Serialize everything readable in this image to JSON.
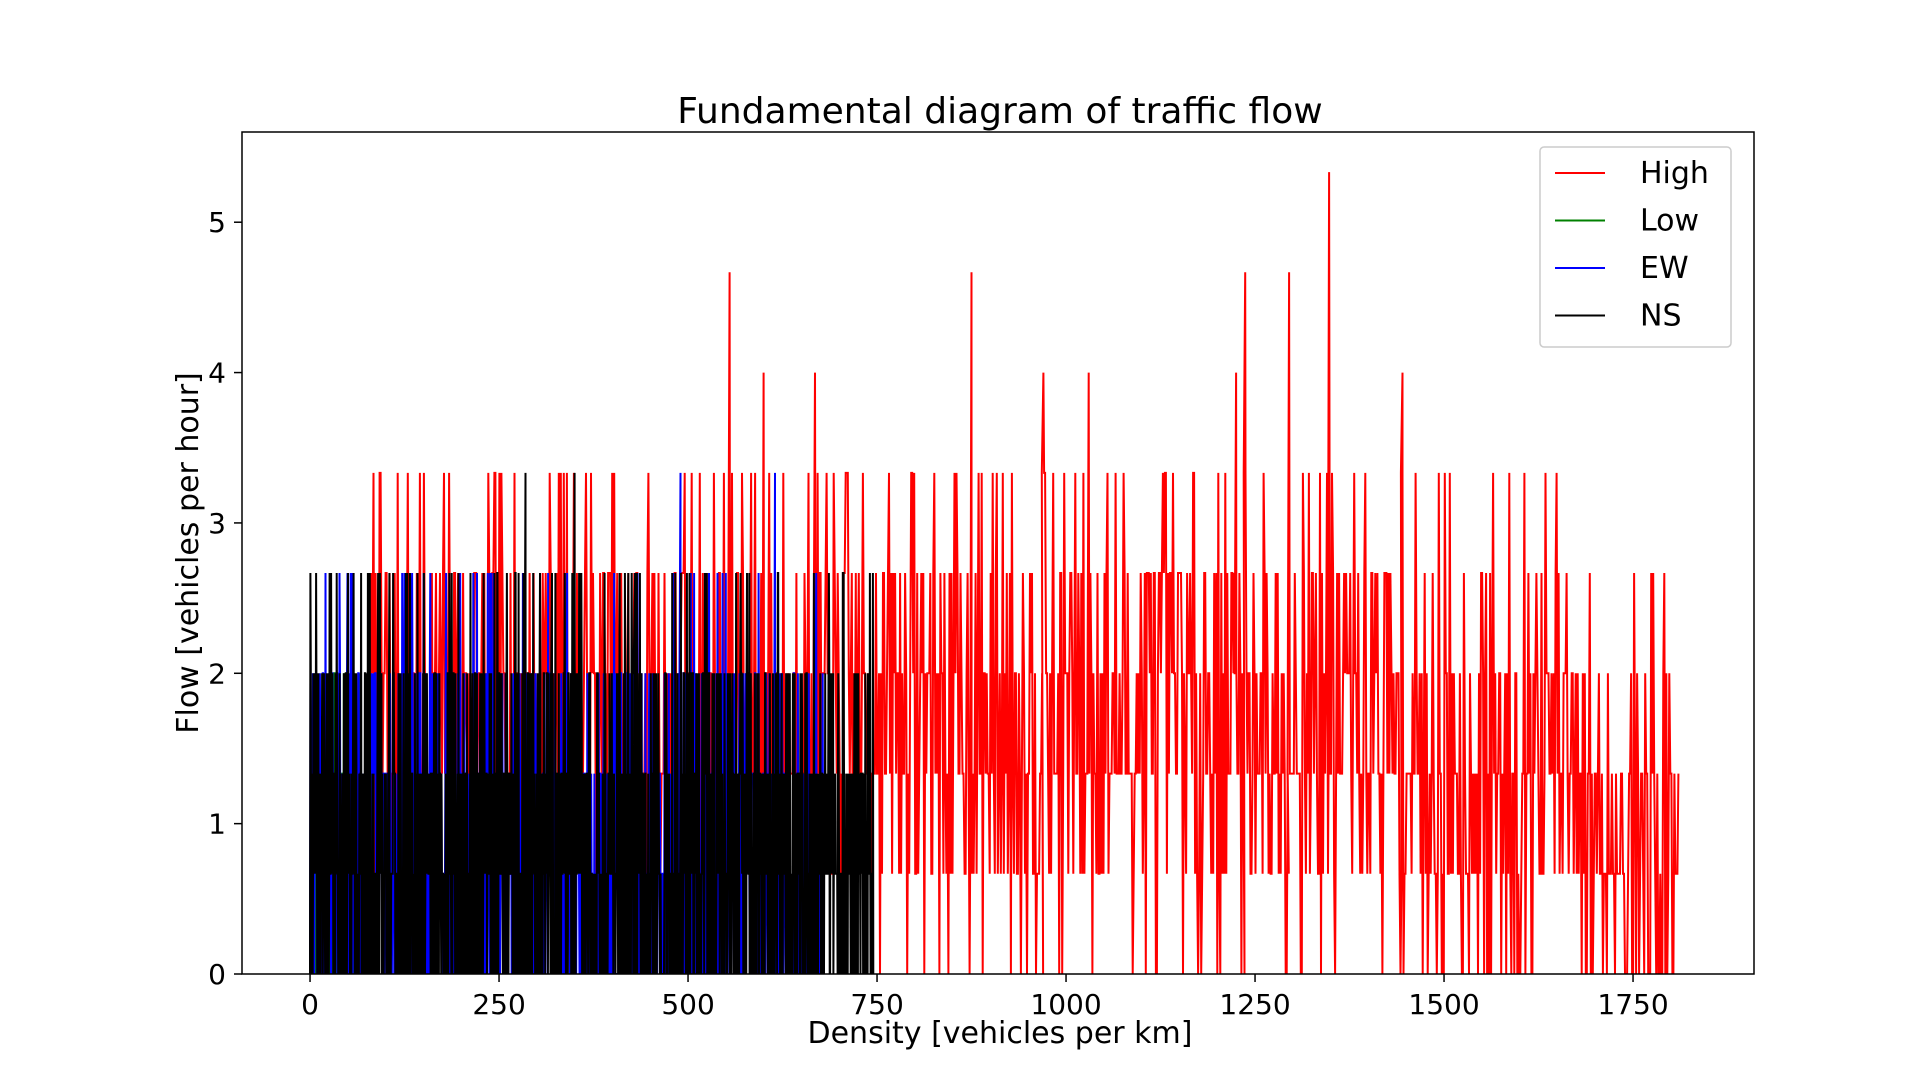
{
  "chart_data": {
    "type": "line",
    "title": "Fundamental diagram of traffic flow",
    "xlabel": "Density [vehicles per km]",
    "ylabel": "Flow [vehicles per hour]",
    "xlim": [
      -90,
      1910
    ],
    "ylim": [
      0,
      5.6
    ],
    "xticks": [
      0,
      250,
      500,
      750,
      1000,
      1250,
      1500,
      1750
    ],
    "xtick_labels": [
      "0",
      "250",
      "500",
      "750",
      "1000",
      "1250",
      "1500",
      "1750"
    ],
    "yticks": [
      0,
      1,
      2,
      3,
      4,
      5
    ],
    "ytick_labels": [
      "0",
      "1",
      "2",
      "3",
      "4",
      "5"
    ],
    "grid": false,
    "legend_position": "top-right",
    "flow_levels": [
      0,
      0.667,
      1.333,
      2,
      2.667,
      3.333,
      4,
      4.667,
      5.333
    ],
    "series": [
      {
        "name": "High",
        "color": "#ff0000",
        "x_range": [
          80,
          1810
        ],
        "peaks": [
          {
            "x": 555,
            "y": 4.667
          },
          {
            "x": 600,
            "y": 4.0
          },
          {
            "x": 668,
            "y": 4.0
          },
          {
            "x": 875,
            "y": 4.667
          },
          {
            "x": 970,
            "y": 4.0
          },
          {
            "x": 1030,
            "y": 4.0
          },
          {
            "x": 1225,
            "y": 4.0
          },
          {
            "x": 1237,
            "y": 4.667
          },
          {
            "x": 1295,
            "y": 4.667
          },
          {
            "x": 1348,
            "y": 5.333
          },
          {
            "x": 1445,
            "y": 4.0
          }
        ]
      },
      {
        "name": "Low",
        "color": "#008000",
        "x_range": [
          0,
          70
        ],
        "peaks": [
          {
            "x": 35,
            "y": 2.0
          },
          {
            "x": 60,
            "y": 1.333
          }
        ]
      },
      {
        "name": "EW",
        "color": "#0000ff",
        "x_range": [
          0,
          680
        ],
        "peaks": [
          {
            "x": 135,
            "y": 2.667
          },
          {
            "x": 180,
            "y": 2.667
          },
          {
            "x": 340,
            "y": 2.667
          },
          {
            "x": 490,
            "y": 3.333
          },
          {
            "x": 550,
            "y": 2.667
          },
          {
            "x": 615,
            "y": 3.333
          }
        ]
      },
      {
        "name": "NS",
        "color": "#000000",
        "x_range": [
          0,
          745
        ],
        "peaks": [
          {
            "x": 90,
            "y": 2.667
          },
          {
            "x": 105,
            "y": 2.667
          },
          {
            "x": 285,
            "y": 3.333
          },
          {
            "x": 320,
            "y": 2.667
          },
          {
            "x": 350,
            "y": 3.333
          },
          {
            "x": 430,
            "y": 2.667
          }
        ]
      }
    ]
  }
}
